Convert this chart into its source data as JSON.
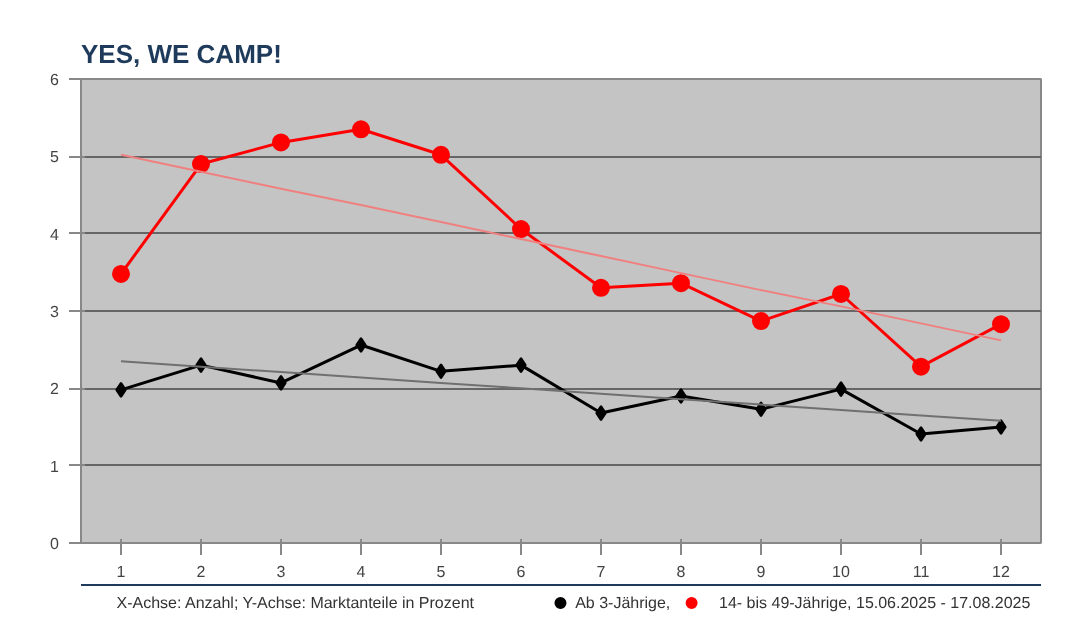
{
  "chart_data": {
    "type": "line",
    "title": "YES, WE CAMP!",
    "x": [
      1,
      2,
      3,
      4,
      5,
      6,
      7,
      8,
      9,
      10,
      11,
      12
    ],
    "xlim": [
      0.5,
      12.5
    ],
    "xticks": [
      1,
      2,
      3,
      4,
      5,
      6,
      7,
      8,
      9,
      10,
      11,
      12
    ],
    "ylim": [
      0,
      6
    ],
    "yticks": [
      0,
      1,
      2,
      3,
      4,
      5,
      6
    ],
    "grid": "y",
    "legend": "bottom",
    "annotations": [
      "X-Achse: Anzahl; Y-Achse: Marktanteile in Prozent"
    ],
    "series": [
      {
        "name": "Ab 3-Jährige,",
        "color": "#000000",
        "marker": "diamond",
        "values": [
          1.98,
          2.3,
          2.07,
          2.56,
          2.22,
          2.3,
          1.68,
          1.9,
          1.73,
          1.99,
          1.41,
          1.5
        ]
      },
      {
        "name": "14- bis 49-Jährige, 15.06.2025 - 17.08.2025",
        "color": "#ff0000",
        "marker": "circle",
        "values": [
          3.48,
          4.9,
          5.18,
          5.35,
          5.02,
          4.06,
          3.3,
          3.36,
          2.87,
          3.22,
          2.28,
          2.83
        ]
      },
      {
        "type": "line",
        "color": "#707070",
        "marker": "none",
        "values": [
          2.35,
          2.28,
          2.21,
          2.14,
          2.07,
          2.0,
          1.93,
          1.86,
          1.79,
          1.72,
          1.65,
          1.58
        ]
      },
      {
        "type": "line",
        "color": "#f08080",
        "marker": "none",
        "values": [
          5.02,
          4.8,
          4.58,
          4.37,
          4.15,
          3.93,
          3.71,
          3.49,
          3.27,
          3.06,
          2.84,
          2.62
        ]
      }
    ]
  }
}
